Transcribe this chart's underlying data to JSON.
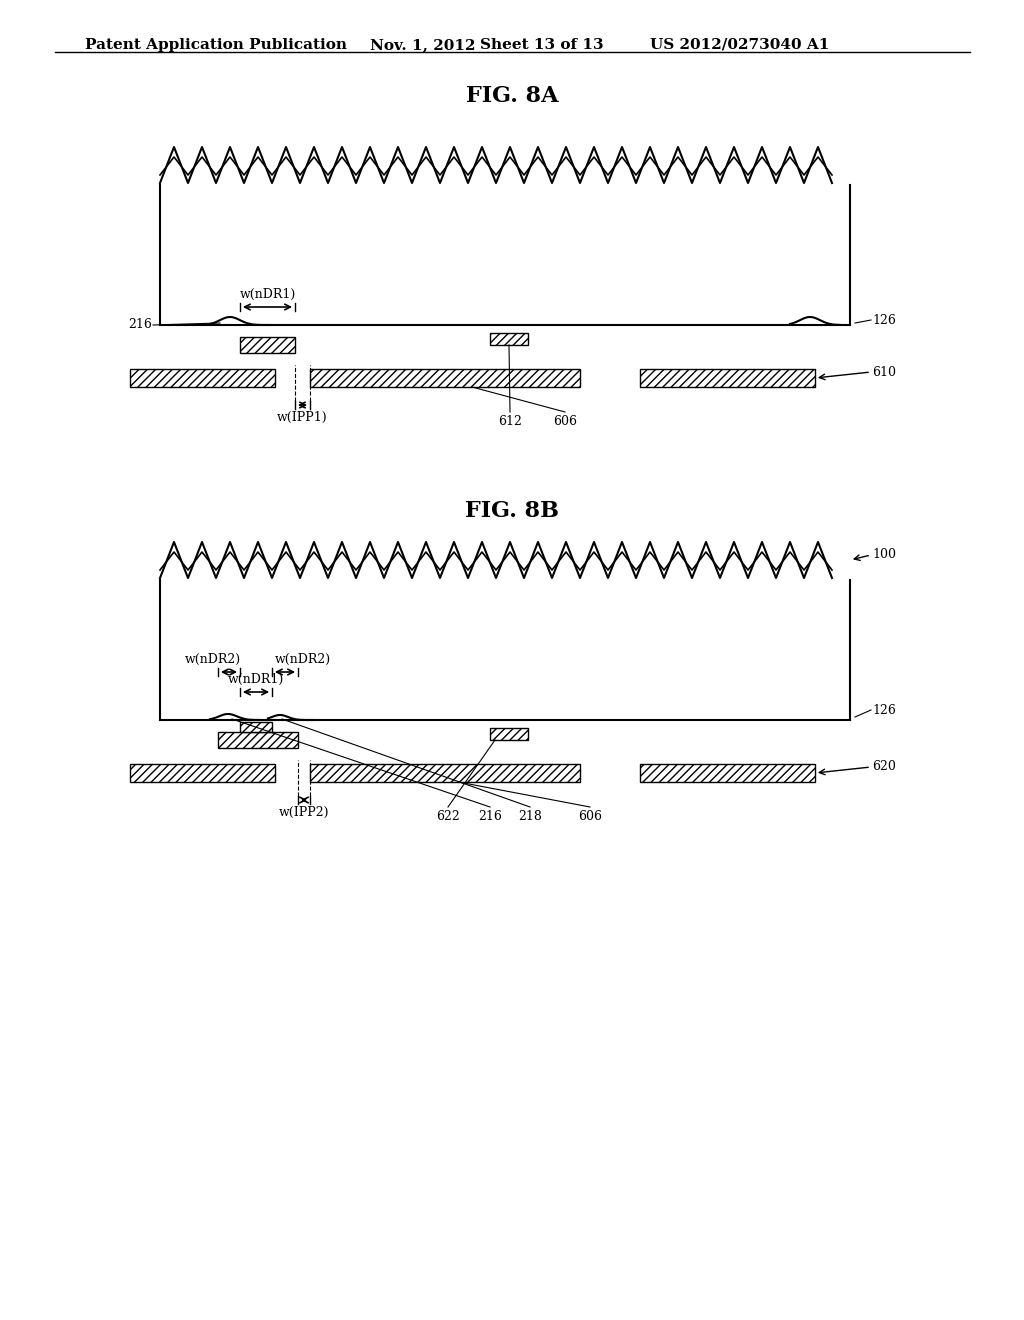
{
  "bg_color": "#ffffff",
  "header_text": "Patent Application Publication",
  "header_date": "Nov. 1, 2012",
  "header_sheet": "Sheet 13 of 13",
  "header_patent": "US 2012/0273040 A1",
  "fig8a_title": "FIG. 8A",
  "fig8b_title": "FIG. 8B",
  "line_color": "#000000"
}
